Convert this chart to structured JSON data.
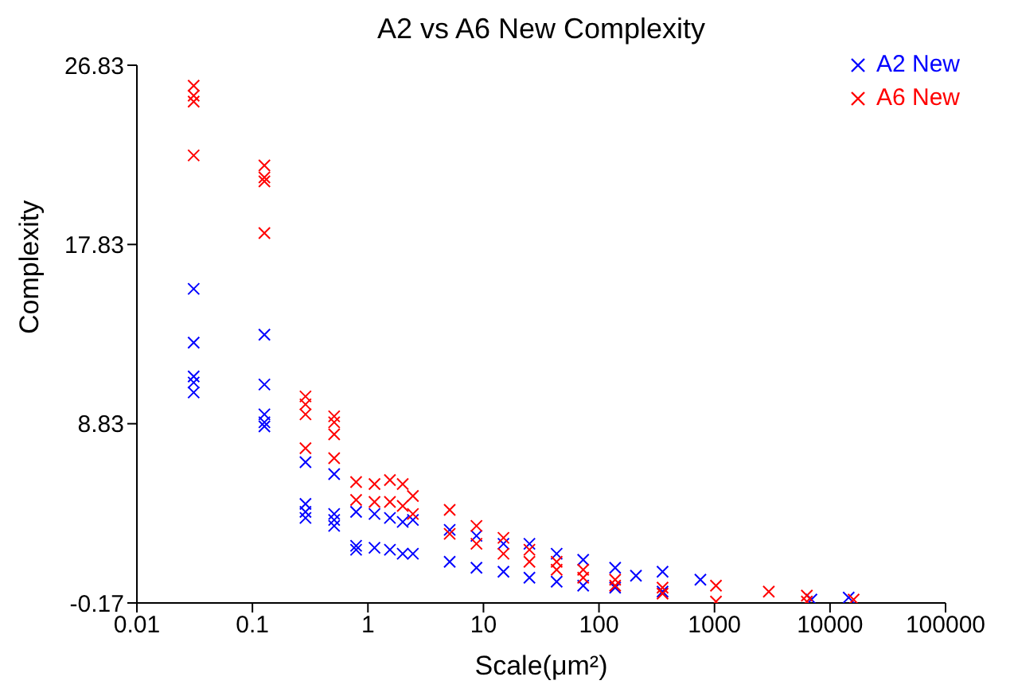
{
  "chart_data": {
    "type": "scatter",
    "title": "A2 vs A6 New Complexity",
    "xlabel": "Scale(μm²)",
    "ylabel": "Complexity",
    "log": "x",
    "xlim": [
      0.01,
      100000
    ],
    "xticks": [
      0.01,
      0.1,
      1,
      10,
      100,
      1000,
      10000,
      100000
    ],
    "ylim": [
      -0.17,
      26.83
    ],
    "yticks": [
      -0.17,
      8.83,
      17.83,
      26.83
    ],
    "grid": false,
    "legend": "top right",
    "marker": "cross",
    "series": [
      {
        "name": "A2 New",
        "color": "#0000ff",
        "x": [
          0.031,
          0.031,
          0.031,
          0.031,
          0.031,
          0.127,
          0.127,
          0.127,
          0.127,
          0.127,
          0.288,
          0.288,
          0.288,
          0.288,
          0.51,
          0.51,
          0.51,
          0.51,
          0.79,
          0.79,
          0.79,
          1.14,
          1.14,
          1.55,
          1.55,
          2.0,
          2.0,
          2.45,
          5.1,
          8.7,
          14.9,
          25,
          43,
          73,
          138,
          209,
          355,
          755,
          2.45,
          5.1,
          8.7,
          14.9,
          25,
          43,
          73,
          138,
          355,
          6900,
          14500
        ],
        "values": [
          15.6,
          12.9,
          11.2,
          10.9,
          10.4,
          13.3,
          10.8,
          9.3,
          8.9,
          8.7,
          6.9,
          4.8,
          4.4,
          4.1,
          6.3,
          4.3,
          4.0,
          3.7,
          4.4,
          2.7,
          2.5,
          4.3,
          2.6,
          4.1,
          2.5,
          3.9,
          2.3,
          4.0,
          3.5,
          3.2,
          2.8,
          2.8,
          2.3,
          2.0,
          1.6,
          1.2,
          1.4,
          1.0,
          2.3,
          1.9,
          1.6,
          1.4,
          1.1,
          0.9,
          0.7,
          0.6,
          0.4,
          0.0,
          0.1
        ]
      },
      {
        "name": "A6 New",
        "color": "#ff0000",
        "x": [
          0.031,
          0.031,
          0.031,
          0.031,
          0.127,
          0.127,
          0.127,
          0.127,
          0.288,
          0.288,
          0.288,
          0.288,
          0.51,
          0.51,
          0.51,
          0.51,
          0.79,
          0.79,
          1.14,
          1.14,
          1.55,
          1.55,
          2.0,
          2.0,
          2.45,
          5.1,
          8.7,
          14.9,
          25,
          43,
          73,
          138,
          355,
          1030,
          2950,
          6300,
          16000,
          2.45,
          5.1,
          8.7,
          14.9,
          25,
          43,
          73,
          138,
          355,
          1030,
          6300
        ],
        "values": [
          25.8,
          25.3,
          25.0,
          22.3,
          21.8,
          21.2,
          21.0,
          18.4,
          10.2,
          9.8,
          9.3,
          7.6,
          9.2,
          8.9,
          8.3,
          7.1,
          5.9,
          5.0,
          5.8,
          4.9,
          6.0,
          4.9,
          5.8,
          4.7,
          5.2,
          4.5,
          3.7,
          3.1,
          2.5,
          1.9,
          1.5,
          1.0,
          0.6,
          0.7,
          0.4,
          0.2,
          0.0,
          4.3,
          3.3,
          2.8,
          2.3,
          1.9,
          1.5,
          1.1,
          0.7,
          0.3,
          -0.1,
          -0.1
        ]
      }
    ]
  }
}
